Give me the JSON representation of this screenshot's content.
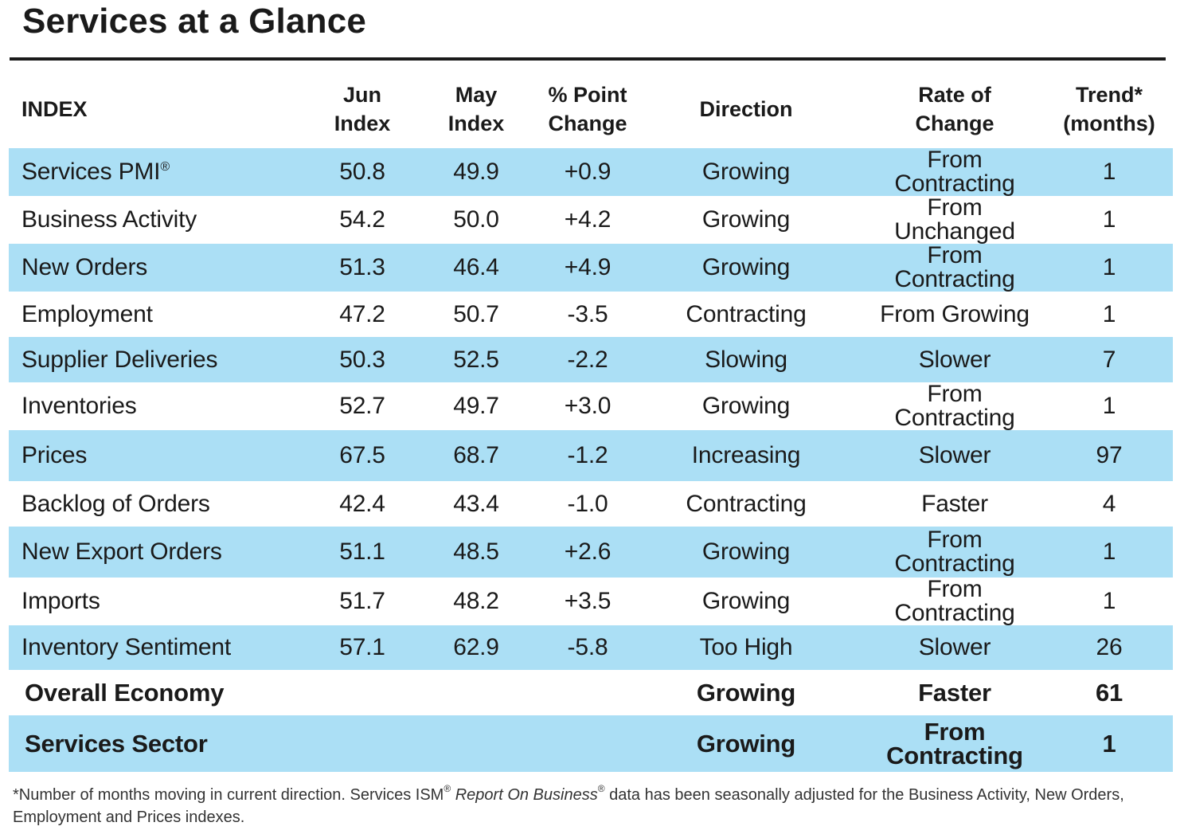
{
  "title": "Services at a Glance",
  "headers": {
    "index": "INDEX",
    "jun_line1": "Jun",
    "jun_line2": "Index",
    "may_line1": "May",
    "may_line2": "Index",
    "change_line1": "% Point",
    "change_line2": "Change",
    "direction": "Direction",
    "rate_line1": "Rate of",
    "rate_line2": "Change",
    "trend_line1": "Trend*",
    "trend_line2": "(months)"
  },
  "rows": [
    {
      "name": "Services PMI",
      "reg": "®",
      "jun": "50.8",
      "may": "49.9",
      "change": "+0.9",
      "direction": "Growing",
      "rate": "From Contracting",
      "trend": "1"
    },
    {
      "name": "Business Activity",
      "jun": "54.2",
      "may": "50.0",
      "change": "+4.2",
      "direction": "Growing",
      "rate": "From Unchanged",
      "trend": "1"
    },
    {
      "name": "New Orders",
      "jun": "51.3",
      "may": "46.4",
      "change": "+4.9",
      "direction": "Growing",
      "rate": "From Contracting",
      "trend": "1"
    },
    {
      "name": "Employment",
      "jun": "47.2",
      "may": "50.7",
      "change": "-3.5",
      "direction": "Contracting",
      "rate": "From Growing",
      "trend": "1"
    },
    {
      "name": "Supplier Deliveries",
      "jun": "50.3",
      "may": "52.5",
      "change": "-2.2",
      "direction": "Slowing",
      "rate": "Slower",
      "trend": "7"
    },
    {
      "name": "Inventories",
      "jun": "52.7",
      "may": "49.7",
      "change": "+3.0",
      "direction": "Growing",
      "rate": "From Contracting",
      "trend": "1"
    },
    {
      "name": "Prices",
      "jun": "67.5",
      "may": "68.7",
      "change": "-1.2",
      "direction": "Increasing",
      "rate": "Slower",
      "trend": "97"
    },
    {
      "name": "Backlog of Orders",
      "jun": "42.4",
      "may": "43.4",
      "change": "-1.0",
      "direction": "Contracting",
      "rate": "Faster",
      "trend": "4"
    },
    {
      "name": "New Export Orders",
      "jun": "51.1",
      "may": "48.5",
      "change": "+2.6",
      "direction": "Growing",
      "rate": "From Contracting",
      "trend": "1"
    },
    {
      "name": "Imports",
      "jun": "51.7",
      "may": "48.2",
      "change": "+3.5",
      "direction": "Growing",
      "rate": "From Contracting",
      "trend": "1"
    },
    {
      "name": "Inventory Sentiment",
      "jun": "57.1",
      "may": "62.9",
      "change": "-5.8",
      "direction": "Too High",
      "rate": "Slower",
      "trend": "26"
    }
  ],
  "summary": [
    {
      "name": "Overall Economy",
      "direction": "Growing",
      "rate": "Faster",
      "trend": "61"
    },
    {
      "name": "Services Sector",
      "direction": "Growing",
      "rate": "From Contracting",
      "trend": "1"
    }
  ],
  "footnote": {
    "part1": "*Number of months moving in current direction. Services ISM",
    "reg1": "®",
    "italic": "Report On Business",
    "reg2": "®",
    "part2": " data has been seasonally adjusted for the Business Activity, New Orders, Employment and Prices indexes."
  },
  "colors": {
    "shade": "#abdff5",
    "text": "#1a1a1a"
  }
}
